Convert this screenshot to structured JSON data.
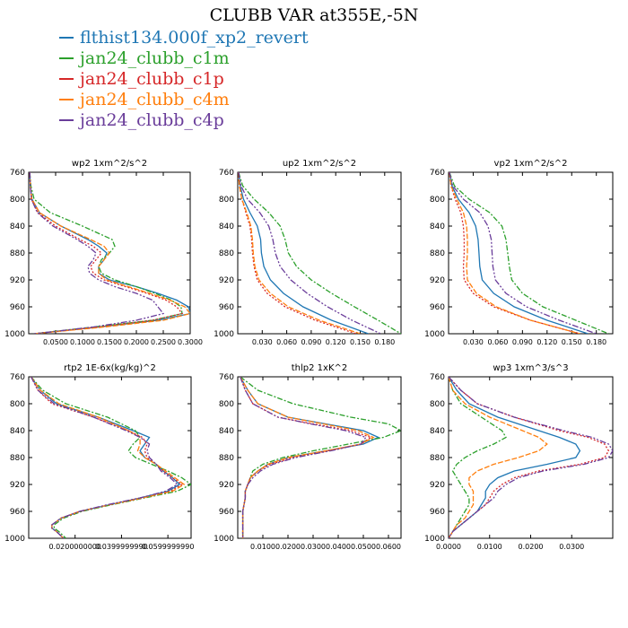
{
  "figure": {
    "title": "CLUBB VAR at355E,-5N"
  },
  "legend": [
    {
      "label": "flthist134.000f_xp2_revert",
      "color": "#1f77b4"
    },
    {
      "label": "jan24_clubb_c1m",
      "color": "#2ca02c"
    },
    {
      "label": "jan24_clubb_c1p",
      "color": "#d62728"
    },
    {
      "label": "jan24_clubb_c4m",
      "color": "#ff7f0e"
    },
    {
      "label": "jan24_clubb_c4p",
      "color": "#6a3d9a"
    }
  ],
  "chart_data": [
    {
      "type": "line",
      "title": "wp2 1xm^2/s^2",
      "xlim": [
        0,
        0.3
      ],
      "ylim": [
        760,
        1000
      ],
      "y_inverted": true,
      "xticks": [
        "0.0500",
        "0.1000",
        "0.1500",
        "0.2000",
        "0.2500",
        "0.3000"
      ],
      "xtick_values": [
        0.05,
        0.1,
        0.15,
        0.2,
        0.25,
        0.3
      ],
      "yticks": [
        760,
        800,
        840,
        880,
        920,
        960,
        1000
      ],
      "y": [
        760,
        780,
        800,
        820,
        840,
        860,
        870,
        880,
        890,
        900,
        910,
        920,
        930,
        940,
        950,
        960,
        970,
        980,
        990,
        1000
      ],
      "series": [
        {
          "name": "flthist134.000f_xp2_revert",
          "values": [
            0.002,
            0.003,
            0.006,
            0.02,
            0.06,
            0.11,
            0.13,
            0.145,
            0.14,
            0.13,
            0.13,
            0.15,
            0.2,
            0.24,
            0.275,
            0.297,
            0.3,
            0.24,
            0.13,
            0.01
          ]
        },
        {
          "name": "jan24_clubb_c1m",
          "values": [
            0.002,
            0.004,
            0.01,
            0.04,
            0.1,
            0.155,
            0.16,
            0.15,
            0.135,
            0.13,
            0.135,
            0.16,
            0.2,
            0.235,
            0.265,
            0.283,
            0.285,
            0.23,
            0.12,
            0.01
          ]
        },
        {
          "name": "jan24_clubb_c1p",
          "values": [
            0.002,
            0.003,
            0.005,
            0.017,
            0.05,
            0.095,
            0.12,
            0.135,
            0.125,
            0.115,
            0.12,
            0.14,
            0.18,
            0.22,
            0.255,
            0.275,
            0.285,
            0.23,
            0.13,
            0.01
          ]
        },
        {
          "name": "jan24_clubb_c4m",
          "values": [
            0.002,
            0.003,
            0.006,
            0.02,
            0.06,
            0.115,
            0.14,
            0.15,
            0.14,
            0.13,
            0.13,
            0.145,
            0.185,
            0.225,
            0.262,
            0.29,
            0.3,
            0.25,
            0.14,
            0.01
          ]
        },
        {
          "name": "jan24_clubb_c4p",
          "values": [
            0.002,
            0.003,
            0.005,
            0.016,
            0.045,
            0.09,
            0.11,
            0.125,
            0.12,
            0.11,
            0.113,
            0.13,
            0.16,
            0.2,
            0.23,
            0.24,
            0.25,
            0.2,
            0.12,
            0.01
          ]
        }
      ]
    },
    {
      "type": "line",
      "title": "up2 1xm^2/s^2",
      "xlim": [
        0,
        0.2
      ],
      "ylim": [
        760,
        1000
      ],
      "y_inverted": true,
      "xticks": [
        "0.030",
        "0.060",
        "0.090",
        "0.120",
        "0.150",
        "0.180"
      ],
      "xtick_values": [
        0.03,
        0.06,
        0.09,
        0.12,
        0.15,
        0.18
      ],
      "yticks": [
        760,
        800,
        840,
        880,
        920,
        960,
        1000
      ],
      "y": [
        760,
        780,
        800,
        820,
        840,
        860,
        880,
        900,
        920,
        940,
        960,
        980,
        1000
      ],
      "series": [
        {
          "name": "flthist134.000f_xp2_revert",
          "values": [
            0.001,
            0.003,
            0.007,
            0.015,
            0.024,
            0.028,
            0.029,
            0.032,
            0.04,
            0.056,
            0.08,
            0.115,
            0.16
          ]
        },
        {
          "name": "jan24_clubb_c1m",
          "values": [
            0.001,
            0.006,
            0.02,
            0.038,
            0.052,
            0.058,
            0.062,
            0.072,
            0.09,
            0.115,
            0.143,
            0.172,
            0.2
          ]
        },
        {
          "name": "jan24_clubb_c1p",
          "values": [
            0.001,
            0.002,
            0.005,
            0.01,
            0.015,
            0.017,
            0.018,
            0.02,
            0.024,
            0.036,
            0.058,
            0.095,
            0.145
          ]
        },
        {
          "name": "jan24_clubb_c4m",
          "values": [
            0.001,
            0.002,
            0.005,
            0.011,
            0.016,
            0.018,
            0.019,
            0.021,
            0.026,
            0.04,
            0.062,
            0.1,
            0.15
          ]
        },
        {
          "name": "jan24_clubb_c4p",
          "values": [
            0.001,
            0.004,
            0.012,
            0.027,
            0.038,
            0.043,
            0.046,
            0.052,
            0.065,
            0.085,
            0.11,
            0.14,
            0.175
          ]
        }
      ]
    },
    {
      "type": "line",
      "title": "vp2 1xm^2/s^2",
      "xlim": [
        0,
        0.2
      ],
      "ylim": [
        760,
        1000
      ],
      "y_inverted": true,
      "xticks": [
        "0.030",
        "0.060",
        "0.090",
        "0.120",
        "0.150",
        "0.180"
      ],
      "xtick_values": [
        0.03,
        0.06,
        0.09,
        0.12,
        0.15,
        0.18
      ],
      "yticks": [
        760,
        800,
        840,
        880,
        920,
        960,
        1000
      ],
      "y": [
        760,
        780,
        800,
        820,
        840,
        860,
        880,
        900,
        920,
        940,
        960,
        980,
        1000
      ],
      "series": [
        {
          "name": "flthist134.000f_xp2_revert",
          "values": [
            0.001,
            0.004,
            0.012,
            0.025,
            0.033,
            0.036,
            0.037,
            0.038,
            0.041,
            0.055,
            0.08,
            0.12,
            0.17
          ]
        },
        {
          "name": "jan24_clubb_c1m",
          "values": [
            0.001,
            0.007,
            0.025,
            0.05,
            0.065,
            0.07,
            0.072,
            0.074,
            0.077,
            0.09,
            0.115,
            0.155,
            0.195
          ]
        },
        {
          "name": "jan24_clubb_c1p",
          "values": [
            0.001,
            0.003,
            0.008,
            0.015,
            0.018,
            0.019,
            0.019,
            0.018,
            0.019,
            0.03,
            0.055,
            0.1,
            0.16
          ]
        },
        {
          "name": "jan24_clubb_c4m",
          "values": [
            0.001,
            0.003,
            0.01,
            0.018,
            0.022,
            0.023,
            0.023,
            0.022,
            0.023,
            0.034,
            0.058,
            0.1,
            0.16
          ]
        },
        {
          "name": "jan24_clubb_c4p",
          "values": [
            0.001,
            0.005,
            0.018,
            0.038,
            0.048,
            0.052,
            0.053,
            0.054,
            0.057,
            0.07,
            0.095,
            0.135,
            0.18
          ]
        }
      ]
    },
    {
      "type": "line",
      "title": "rtp2 1E-6x(kg/kg)^2",
      "xlim": [
        0,
        0.07
      ],
      "ylim": [
        760,
        1000
      ],
      "y_inverted": true,
      "xticks": [
        "0.0200000000",
        "0.0399999990",
        "0.0599999990"
      ],
      "xtick_values": [
        0.02,
        0.04,
        0.06
      ],
      "yticks": [
        760,
        800,
        840,
        880,
        920,
        960,
        1000
      ],
      "y": [
        760,
        780,
        800,
        820,
        840,
        850,
        860,
        870,
        880,
        890,
        900,
        910,
        920,
        930,
        940,
        950,
        960,
        970,
        980,
        985,
        990,
        1000
      ],
      "series": [
        {
          "name": "flthist134.000f_xp2_revert",
          "values": [
            0.001,
            0.005,
            0.012,
            0.03,
            0.045,
            0.052,
            0.05,
            0.048,
            0.05,
            0.055,
            0.058,
            0.062,
            0.065,
            0.06,
            0.048,
            0.035,
            0.022,
            0.014,
            0.01,
            0.01,
            0.012,
            0.015
          ]
        },
        {
          "name": "jan24_clubb_c1m",
          "values": [
            0.001,
            0.006,
            0.016,
            0.034,
            0.046,
            0.048,
            0.045,
            0.043,
            0.046,
            0.053,
            0.06,
            0.066,
            0.07,
            0.064,
            0.05,
            0.036,
            0.023,
            0.015,
            0.011,
            0.011,
            0.013,
            0.016
          ]
        },
        {
          "name": "jan24_clubb_c1p",
          "values": [
            0.001,
            0.004,
            0.01,
            0.028,
            0.043,
            0.049,
            0.051,
            0.05,
            0.051,
            0.055,
            0.058,
            0.062,
            0.066,
            0.061,
            0.049,
            0.035,
            0.022,
            0.014,
            0.01,
            0.01,
            0.012,
            0.015
          ]
        },
        {
          "name": "jan24_clubb_c4m",
          "values": [
            0.001,
            0.005,
            0.013,
            0.03,
            0.043,
            0.048,
            0.048,
            0.047,
            0.05,
            0.055,
            0.059,
            0.063,
            0.067,
            0.062,
            0.049,
            0.035,
            0.022,
            0.014,
            0.01,
            0.01,
            0.012,
            0.015
          ]
        },
        {
          "name": "jan24_clubb_c4p",
          "values": [
            0.001,
            0.004,
            0.011,
            0.028,
            0.042,
            0.048,
            0.052,
            0.051,
            0.052,
            0.055,
            0.057,
            0.061,
            0.064,
            0.059,
            0.048,
            0.034,
            0.022,
            0.014,
            0.01,
            0.01,
            0.012,
            0.015
          ]
        }
      ]
    },
    {
      "type": "line",
      "title": "thlp2 1xK^2",
      "xlim": [
        0,
        0.065
      ],
      "ylim": [
        760,
        1000
      ],
      "y_inverted": true,
      "xticks": [
        "0.0100",
        "0.0200",
        "0.0300",
        "0.0400",
        "0.0500",
        "0.0600"
      ],
      "xtick_values": [
        0.01,
        0.02,
        0.03,
        0.04,
        0.05,
        0.06
      ],
      "yticks": [
        760,
        800,
        840,
        880,
        920,
        960,
        1000
      ],
      "y": [
        760,
        780,
        800,
        820,
        830,
        840,
        850,
        860,
        870,
        880,
        890,
        900,
        910,
        920,
        930,
        940,
        960,
        980,
        1000
      ],
      "series": [
        {
          "name": "flthist134.000f_xp2_revert",
          "values": [
            0.001,
            0.004,
            0.008,
            0.02,
            0.035,
            0.05,
            0.056,
            0.05,
            0.035,
            0.02,
            0.012,
            0.008,
            0.005,
            0.004,
            0.003,
            0.003,
            0.002,
            0.002,
            0.002
          ]
        },
        {
          "name": "jan24_clubb_c1m",
          "values": [
            0.001,
            0.008,
            0.022,
            0.045,
            0.06,
            0.065,
            0.058,
            0.044,
            0.03,
            0.018,
            0.01,
            0.006,
            0.005,
            0.004,
            0.003,
            0.003,
            0.002,
            0.002,
            0.002
          ]
        },
        {
          "name": "jan24_clubb_c1p",
          "values": [
            0.001,
            0.003,
            0.006,
            0.016,
            0.03,
            0.045,
            0.053,
            0.049,
            0.036,
            0.022,
            0.013,
            0.008,
            0.005,
            0.004,
            0.003,
            0.003,
            0.002,
            0.002,
            0.002
          ]
        },
        {
          "name": "jan24_clubb_c4m",
          "values": [
            0.001,
            0.004,
            0.008,
            0.02,
            0.034,
            0.048,
            0.054,
            0.049,
            0.035,
            0.02,
            0.012,
            0.008,
            0.005,
            0.004,
            0.003,
            0.003,
            0.002,
            0.002,
            0.002
          ]
        },
        {
          "name": "jan24_clubb_c4p",
          "values": [
            0.001,
            0.003,
            0.006,
            0.016,
            0.029,
            0.043,
            0.051,
            0.049,
            0.037,
            0.023,
            0.014,
            0.009,
            0.006,
            0.004,
            0.003,
            0.003,
            0.002,
            0.002,
            0.002
          ]
        }
      ]
    },
    {
      "type": "line",
      "title": "wp3 1xm^3/s^3",
      "xlim": [
        0,
        0.04
      ],
      "ylim": [
        760,
        1000
      ],
      "y_inverted": true,
      "xticks": [
        "0.0000",
        "0.0100",
        "0.0200",
        "0.0300"
      ],
      "xtick_values": [
        0.0,
        0.01,
        0.02,
        0.03
      ],
      "yticks": [
        760,
        800,
        840,
        880,
        920,
        960,
        1000
      ],
      "y": [
        760,
        780,
        800,
        820,
        840,
        850,
        860,
        870,
        880,
        890,
        900,
        910,
        920,
        930,
        940,
        950,
        960,
        970,
        980,
        990,
        1000
      ],
      "series": [
        {
          "name": "flthist134.000f_xp2_revert",
          "values": [
            0.0,
            0.002,
            0.005,
            0.012,
            0.022,
            0.027,
            0.031,
            0.032,
            0.031,
            0.024,
            0.016,
            0.012,
            0.01,
            0.009,
            0.009,
            0.008,
            0.007,
            0.005,
            0.003,
            0.001,
            0.0
          ]
        },
        {
          "name": "jan24_clubb_c1m",
          "values": [
            0.0,
            0.001,
            0.003,
            0.008,
            0.013,
            0.014,
            0.011,
            0.007,
            0.004,
            0.002,
            0.001,
            0.002,
            0.003,
            0.004,
            0.005,
            0.005,
            0.004,
            0.003,
            0.002,
            0.001,
            0.0
          ]
        },
        {
          "name": "jan24_clubb_c1p",
          "values": [
            0.0,
            0.003,
            0.007,
            0.016,
            0.027,
            0.034,
            0.038,
            0.039,
            0.038,
            0.032,
            0.022,
            0.016,
            0.013,
            0.011,
            0.01,
            0.009,
            0.007,
            0.005,
            0.003,
            0.001,
            0.0
          ]
        },
        {
          "name": "jan24_clubb_c4m",
          "values": [
            0.0,
            0.001,
            0.004,
            0.01,
            0.018,
            0.022,
            0.024,
            0.022,
            0.017,
            0.011,
            0.007,
            0.005,
            0.005,
            0.006,
            0.006,
            0.006,
            0.005,
            0.004,
            0.002,
            0.001,
            0.0
          ]
        },
        {
          "name": "jan24_clubb_c4p",
          "values": [
            0.0,
            0.003,
            0.007,
            0.016,
            0.028,
            0.035,
            0.039,
            0.04,
            0.039,
            0.033,
            0.023,
            0.017,
            0.014,
            0.012,
            0.011,
            0.009,
            0.007,
            0.005,
            0.003,
            0.001,
            0.0
          ]
        }
      ]
    }
  ]
}
